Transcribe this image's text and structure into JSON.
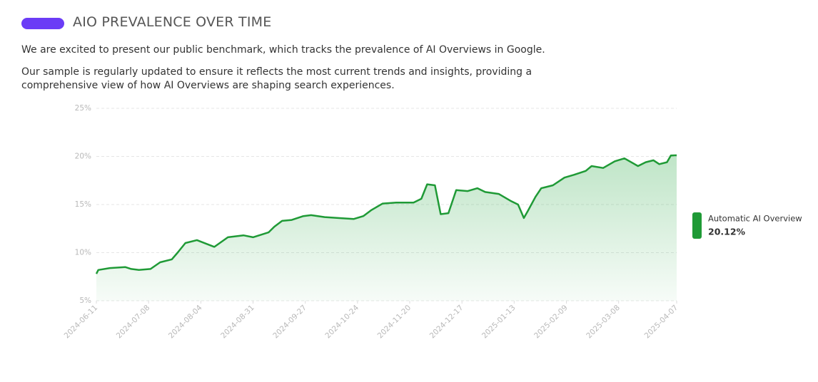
{
  "header": {
    "title": "AIO PREVALENCE OVER TIME",
    "paragraphs": [
      "We are excited to present our public benchmark, which tracks the prevalence of AI Overviews in Google.",
      "Our sample is regularly updated to ensure it reflects the most current trends and insights, providing a comprehensive view of how AI Overviews are shaping search experiences."
    ]
  },
  "chart_data": {
    "type": "line",
    "x": [
      "2024-06-11",
      "2024-06-12",
      "2024-06-18",
      "2024-06-26",
      "2024-06-29",
      "2024-07-03",
      "2024-07-09",
      "2024-07-14",
      "2024-07-20",
      "2024-07-23",
      "2024-07-27",
      "2024-08-02",
      "2024-08-11",
      "2024-08-18",
      "2024-08-26",
      "2024-08-31",
      "2024-09-08",
      "2024-09-11",
      "2024-09-15",
      "2024-09-20",
      "2024-09-26",
      "2024-09-30",
      "2024-10-07",
      "2024-10-14",
      "2024-10-22",
      "2024-10-27",
      "2024-10-31",
      "2024-11-06",
      "2024-11-13",
      "2024-11-22",
      "2024-11-26",
      "2024-11-29",
      "2024-12-03",
      "2024-12-06",
      "2024-12-10",
      "2024-12-14",
      "2024-12-20",
      "2024-12-25",
      "2024-12-29",
      "2025-01-05",
      "2025-01-11",
      "2025-01-15",
      "2025-01-18",
      "2025-01-20",
      "2025-01-24",
      "2025-01-27",
      "2025-02-02",
      "2025-02-08",
      "2025-02-13",
      "2025-02-19",
      "2025-02-22",
      "2025-02-28",
      "2025-03-06",
      "2025-03-11",
      "2025-03-18",
      "2025-03-22",
      "2025-03-26",
      "2025-03-29",
      "2025-04-02",
      "2025-04-04",
      "2025-04-07"
    ],
    "series": [
      {
        "name": "Automatic AI Overview",
        "color": "#1f9a36",
        "legend_value_label": "20.12%",
        "values": [
          7.8,
          8.2,
          8.4,
          8.5,
          8.3,
          8.2,
          8.3,
          9.0,
          9.3,
          10.0,
          11.0,
          11.3,
          10.6,
          11.6,
          11.8,
          11.6,
          12.1,
          12.7,
          13.3,
          13.4,
          13.8,
          13.9,
          13.7,
          13.6,
          13.5,
          13.8,
          14.4,
          15.1,
          15.2,
          15.2,
          15.6,
          17.1,
          17.0,
          14.0,
          14.1,
          16.5,
          16.4,
          16.7,
          16.3,
          16.1,
          15.4,
          15.0,
          13.6,
          14.3,
          15.8,
          16.7,
          17.0,
          17.8,
          18.1,
          18.5,
          19.0,
          18.8,
          19.5,
          19.8,
          19.0,
          19.4,
          19.6,
          19.2,
          19.4,
          20.1,
          20.12
        ]
      }
    ],
    "xlim": [
      "2024-06-11",
      "2025-04-07"
    ],
    "xticks": [
      "2024-06-11",
      "2024-07-08",
      "2024-08-04",
      "2024-08-31",
      "2024-09-27",
      "2024-10-24",
      "2024-11-20",
      "2024-12-17",
      "2025-01-13",
      "2025-02-09",
      "2025-03-08",
      "2025-04-07"
    ],
    "ylim": [
      5,
      25
    ],
    "yticks": [
      {
        "value": 5,
        "label": "5%"
      },
      {
        "value": 10,
        "label": "10%"
      },
      {
        "value": 15,
        "label": "15%"
      },
      {
        "value": 20,
        "label": "20%"
      },
      {
        "value": 25,
        "label": "25%"
      }
    ],
    "grid": true
  }
}
